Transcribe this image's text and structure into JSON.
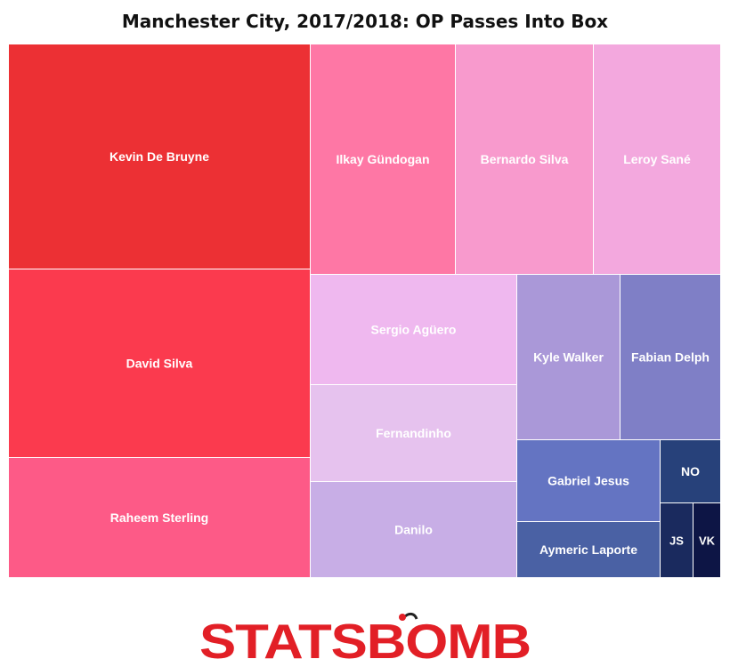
{
  "chart_data": {
    "type": "treemap",
    "title": "Manchester City, 2017/2018: OP Passes Into Box",
    "items": [
      {
        "label": "Kevin De Bruyne",
        "color": "#ec3034"
      },
      {
        "label": "David Silva",
        "color": "#fb3a4e"
      },
      {
        "label": "Raheem Sterling",
        "color": "#fd5a87"
      },
      {
        "label": "Ilkay Gündogan",
        "color": "#fe77a5"
      },
      {
        "label": "Bernardo Silva",
        "color": "#f89acd"
      },
      {
        "label": "Leroy Sané",
        "color": "#f3a8de"
      },
      {
        "label": "Sergio Agüero",
        "color": "#efb8ef"
      },
      {
        "label": "Fernandinho",
        "color": "#e6c2ee"
      },
      {
        "label": "Danilo",
        "color": "#c8aee6"
      },
      {
        "label": "Kyle Walker",
        "color": "#aa98d8"
      },
      {
        "label": "Fabian Delph",
        "color": "#7f7fc6"
      },
      {
        "label": "Gabriel Jesus",
        "color": "#6474c2"
      },
      {
        "label": "Aymeric Laporte",
        "color": "#4a61a4"
      },
      {
        "label": "NO",
        "color": "#27417a"
      },
      {
        "label": "JS",
        "color": "#1a2a5e"
      },
      {
        "label": "VK",
        "color": "#0d1545"
      }
    ]
  },
  "logo": {
    "text": "STATSBOMB",
    "color": "#e21f26"
  }
}
